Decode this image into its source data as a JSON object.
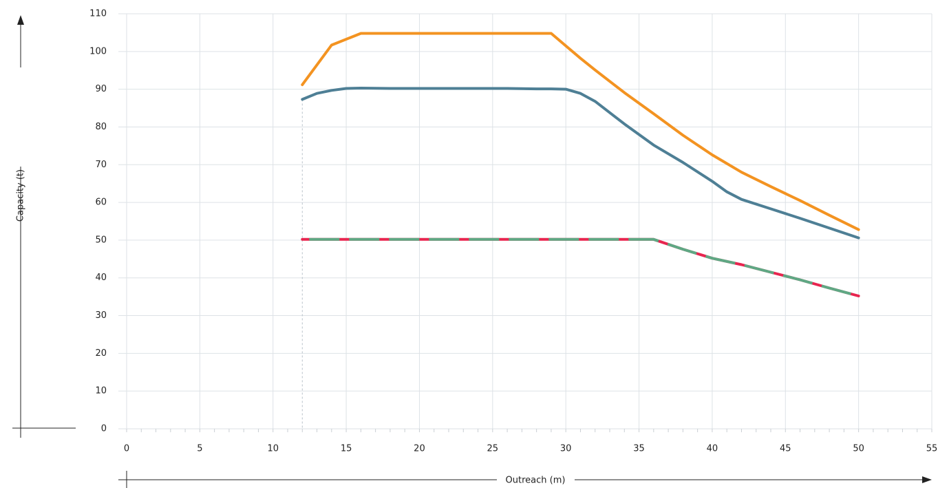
{
  "chart_data": {
    "type": "line",
    "xlabel": "Outreach (m)",
    "ylabel": "Capacity (t)",
    "xlim": [
      0,
      55
    ],
    "ylim": [
      0,
      110
    ],
    "xticks": [
      0,
      5,
      10,
      15,
      20,
      25,
      30,
      35,
      40,
      45,
      50,
      55
    ],
    "yticks": [
      0,
      10,
      20,
      30,
      40,
      50,
      60,
      70,
      80,
      90,
      100,
      110
    ],
    "grid": true,
    "legend": "none",
    "series": [
      {
        "color": "#f39321",
        "style": "solid",
        "points": [
          [
            12,
            91.2
          ],
          [
            14,
            101.7
          ],
          [
            16,
            104.8
          ],
          [
            18,
            104.8
          ],
          [
            20,
            104.8
          ],
          [
            22,
            104.8
          ],
          [
            24,
            104.8
          ],
          [
            26,
            104.8
          ],
          [
            28,
            104.8
          ],
          [
            29,
            104.8
          ],
          [
            30,
            101.5
          ],
          [
            31,
            98.2
          ],
          [
            32,
            95.1
          ],
          [
            34,
            89.1
          ],
          [
            36,
            83.5
          ],
          [
            38,
            77.8
          ],
          [
            40,
            72.6
          ],
          [
            42,
            68.0
          ],
          [
            44,
            64.2
          ],
          [
            46,
            60.5
          ],
          [
            48,
            56.6
          ],
          [
            50,
            52.8
          ]
        ]
      },
      {
        "color": "#4e7f95",
        "style": "solid",
        "points": [
          [
            12,
            87.3
          ],
          [
            13,
            88.9
          ],
          [
            14,
            89.7
          ],
          [
            15,
            90.2
          ],
          [
            16,
            90.3
          ],
          [
            18,
            90.2
          ],
          [
            20,
            90.2
          ],
          [
            22,
            90.2
          ],
          [
            24,
            90.2
          ],
          [
            26,
            90.2
          ],
          [
            28,
            90.1
          ],
          [
            29,
            90.1
          ],
          [
            30,
            90.0
          ],
          [
            31,
            88.9
          ],
          [
            32,
            86.8
          ],
          [
            34,
            80.8
          ],
          [
            36,
            75.2
          ],
          [
            38,
            70.6
          ],
          [
            40,
            65.6
          ],
          [
            41,
            62.8
          ],
          [
            42,
            60.8
          ],
          [
            44,
            58.3
          ],
          [
            46,
            55.8
          ],
          [
            48,
            53.2
          ],
          [
            50,
            50.6
          ]
        ]
      },
      {
        "color": "#e8254f",
        "style": "solid",
        "points": [
          [
            12,
            50.2
          ],
          [
            16,
            50.2
          ],
          [
            20,
            50.2
          ],
          [
            24,
            50.2
          ],
          [
            28,
            50.2
          ],
          [
            32,
            50.2
          ],
          [
            36,
            50.2
          ],
          [
            38,
            47.6
          ],
          [
            40,
            45.2
          ],
          [
            42,
            43.5
          ],
          [
            44,
            41.5
          ],
          [
            46,
            39.5
          ],
          [
            48,
            37.3
          ],
          [
            50,
            35.2
          ]
        ]
      },
      {
        "color": "#5fa884",
        "style": "dashed",
        "points": [
          [
            12,
            50.2
          ],
          [
            16,
            50.2
          ],
          [
            20,
            50.2
          ],
          [
            24,
            50.2
          ],
          [
            28,
            50.2
          ],
          [
            32,
            50.2
          ],
          [
            36,
            50.2
          ],
          [
            38,
            47.6
          ],
          [
            40,
            45.2
          ],
          [
            42,
            43.5
          ],
          [
            44,
            41.5
          ],
          [
            46,
            39.5
          ],
          [
            48,
            37.3
          ],
          [
            50,
            35.2
          ]
        ]
      }
    ],
    "reference_line_x": 12
  }
}
